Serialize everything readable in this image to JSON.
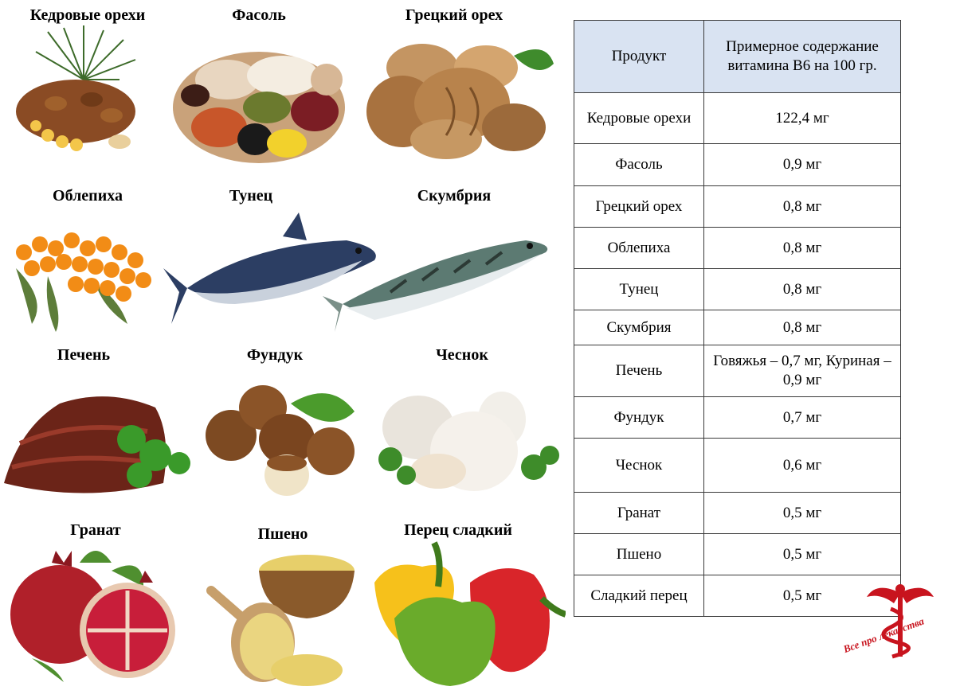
{
  "foods": [
    {
      "label": "Кедровые орехи",
      "icon": "pine-nuts-image"
    },
    {
      "label": "Фасоль",
      "icon": "beans-image"
    },
    {
      "label": "Грецкий орех",
      "icon": "walnut-image"
    },
    {
      "label": "Облепиха",
      "icon": "sea-buckthorn-image"
    },
    {
      "label": "Тунец",
      "icon": "tuna-image"
    },
    {
      "label": "Скумбрия",
      "icon": "mackerel-image"
    },
    {
      "label": "Печень",
      "icon": "liver-image"
    },
    {
      "label": "Фундук",
      "icon": "hazelnut-image"
    },
    {
      "label": "Чеснок",
      "icon": "garlic-image"
    },
    {
      "label": "Гранат",
      "icon": "pomegranate-image"
    },
    {
      "label": "Пшено",
      "icon": "millet-image"
    },
    {
      "label": "Перец сладкий",
      "icon": "bell-pepper-image"
    }
  ],
  "table": {
    "header_product": "Продукт",
    "header_amount": "Примерное содержание витамина В6 на 100 гр.",
    "rows": [
      {
        "product": "Кедровые орехи",
        "amount": "122,4 мг"
      },
      {
        "product": "Фасоль",
        "amount": "0,9 мг"
      },
      {
        "product": "Грецкий орех",
        "amount": "0,8 мг"
      },
      {
        "product": "Облепиха",
        "amount": "0,8 мг"
      },
      {
        "product": "Тунец",
        "amount": "0,8 мг"
      },
      {
        "product": "Скумбрия",
        "amount": "0,8 мг"
      },
      {
        "product": "Печень",
        "amount": "Говяжья – 0,7 мг, Куриная – 0,9 мг"
      },
      {
        "product": "Фундук",
        "amount": "0,7 мг"
      },
      {
        "product": "Чеснок",
        "amount": "0,6 мг"
      },
      {
        "product": "Гранат",
        "amount": "0,5 мг"
      },
      {
        "product": "Пшено",
        "amount": "0,5 мг"
      },
      {
        "product": "Сладкий перец",
        "amount": "0,5 мг"
      }
    ]
  },
  "logo": {
    "text": "Все про лекарства",
    "color": "#c8141e",
    "icon": "caduceus-logo"
  }
}
